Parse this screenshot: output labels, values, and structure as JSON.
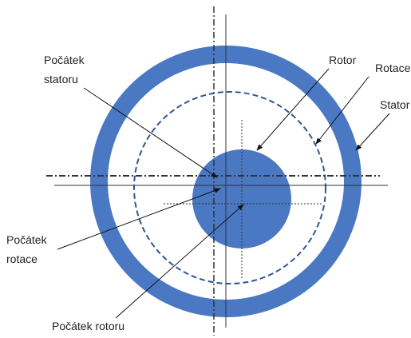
{
  "labels": {
    "stator_origin": [
      "Počátek",
      "statoru"
    ],
    "rotor": "Rotor",
    "rotation": "Rotace",
    "stator": "Stator",
    "rotation_origin": [
      "Počátek",
      "rotace"
    ],
    "rotor_origin": "Počátek rotoru"
  }
}
